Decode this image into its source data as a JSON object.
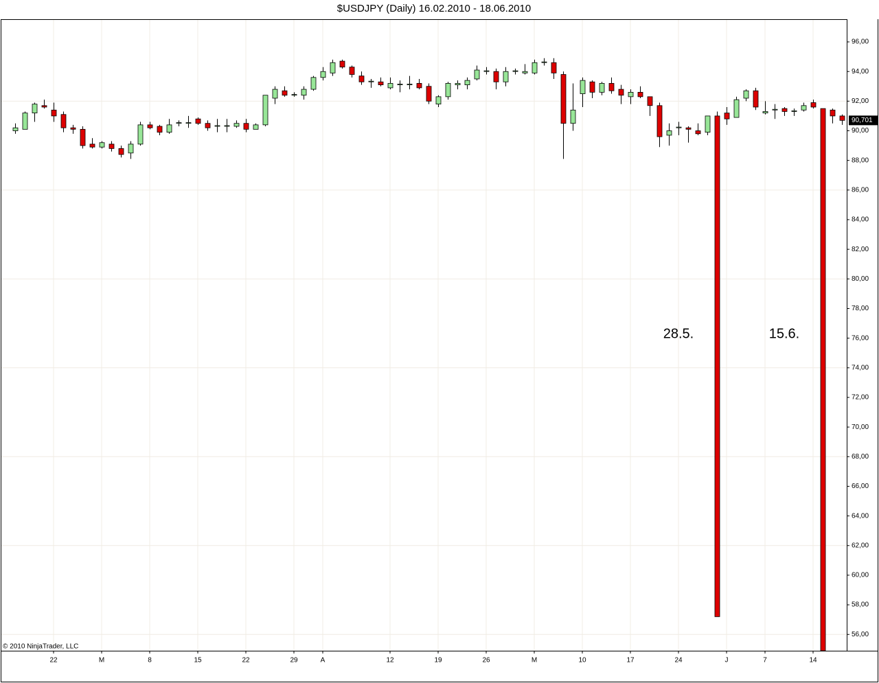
{
  "chart_data": {
    "type": "candlestick",
    "title": "$USDJPY (Daily)  16.02.2010 - 18.06.2010",
    "copyright": "© 2010 NinjaTrader, LLC",
    "annotations": [
      "28.5.",
      "15.6."
    ],
    "last_price": {
      "value": 90.701,
      "label": "90,701"
    },
    "up_color": "#98e698",
    "down_color": "#dd0000",
    "categories": [
      null,
      null,
      null,
      null,
      "22",
      null,
      null,
      null,
      null,
      "M",
      null,
      null,
      null,
      null,
      "8",
      null,
      null,
      null,
      null,
      "15",
      null,
      null,
      null,
      null,
      "22",
      null,
      null,
      null,
      null,
      "29",
      null,
      null,
      "A",
      null,
      null,
      null,
      null,
      null,
      null,
      "12",
      null,
      null,
      null,
      null,
      "19",
      null,
      null,
      null,
      null,
      "26",
      null,
      null,
      null,
      null,
      "M",
      null,
      null,
      null,
      null,
      "10",
      null,
      null,
      null,
      null,
      "17",
      null,
      null,
      null,
      null,
      "24",
      null,
      null,
      null,
      null,
      "J",
      null,
      null,
      null,
      "7",
      null,
      null,
      null,
      null,
      "14",
      null,
      null,
      null
    ],
    "open": [
      90.0,
      90.1,
      91.2,
      91.7,
      91.4,
      91.1,
      90.2,
      90.1,
      89.1,
      88.9,
      89.1,
      88.8,
      88.5,
      89.1,
      90.4,
      90.3,
      89.9,
      90.5,
      90.5,
      90.8,
      90.5,
      90.3,
      90.3,
      90.3,
      90.5,
      90.1,
      90.4,
      92.2,
      92.7,
      92.4,
      92.4,
      92.8,
      93.6,
      93.9,
      94.7,
      94.3,
      93.7,
      93.3,
      93.3,
      92.9,
      93.1,
      93.1,
      93.2,
      93.0,
      91.8,
      92.3,
      93.1,
      93.1,
      93.5,
      94.0,
      94.0,
      93.3,
      94.0,
      93.9,
      93.9,
      94.6,
      94.6,
      93.8,
      90.5,
      92.5,
      93.3,
      92.6,
      93.2,
      92.8,
      92.3,
      92.6,
      92.3,
      91.7,
      89.7,
      90.2,
      90.2,
      90.0,
      89.9,
      91.0,
      91.2,
      90.9,
      92.2,
      92.7,
      91.2,
      91.4,
      91.5,
      91.3,
      91.4,
      91.9,
      91.5,
      91.4,
      91.0
    ],
    "high": [
      90.5,
      91.3,
      91.9,
      92.1,
      91.9,
      91.3,
      90.4,
      90.3,
      89.5,
      89.3,
      89.3,
      89.0,
      89.3,
      90.6,
      90.6,
      90.4,
      90.8,
      90.7,
      91.0,
      90.9,
      90.7,
      90.8,
      90.8,
      90.7,
      90.8,
      90.5,
      92.4,
      93.0,
      93.0,
      92.6,
      93.0,
      93.7,
      94.3,
      94.8,
      94.8,
      94.4,
      94.0,
      93.5,
      93.6,
      93.6,
      93.4,
      93.7,
      93.5,
      93.2,
      92.4,
      93.3,
      93.4,
      93.6,
      94.4,
      94.3,
      94.2,
      94.3,
      94.2,
      94.5,
      94.8,
      94.9,
      94.9,
      94.0,
      93.2,
      93.6,
      93.4,
      93.3,
      93.6,
      93.1,
      92.8,
      93.0,
      92.3,
      91.9,
      90.5,
      90.6,
      90.3,
      90.5,
      91.0,
      91.3,
      91.6,
      92.3,
      92.8,
      92.9,
      92.0,
      91.8,
      91.6,
      91.5,
      91.9,
      92.1,
      91.5,
      91.5,
      91.1
    ],
    "low": [
      89.8,
      90.1,
      90.6,
      91.5,
      90.6,
      89.9,
      89.8,
      88.8,
      88.8,
      88.8,
      88.6,
      88.2,
      88.1,
      89.0,
      90.1,
      89.7,
      89.8,
      90.3,
      90.2,
      90.4,
      90.0,
      89.9,
      89.9,
      90.2,
      89.9,
      90.1,
      90.3,
      91.8,
      92.3,
      92.3,
      92.1,
      92.7,
      93.4,
      93.7,
      94.2,
      93.6,
      93.1,
      92.9,
      93.0,
      92.8,
      92.6,
      92.8,
      92.8,
      91.8,
      91.6,
      92.1,
      92.8,
      92.8,
      93.4,
      93.8,
      92.8,
      93.0,
      93.8,
      93.8,
      93.8,
      94.4,
      93.5,
      88.1,
      90.0,
      91.6,
      92.2,
      92.4,
      92.5,
      91.8,
      91.8,
      92.2,
      91.0,
      88.9,
      89.0,
      89.7,
      89.2,
      89.7,
      89.7,
      57.2,
      90.4,
      90.9,
      92.0,
      91.4,
      91.1,
      90.8,
      91.0,
      91.0,
      91.3,
      91.5,
      54.9,
      90.5,
      90.4
    ],
    "close": [
      90.2,
      91.2,
      91.8,
      91.6,
      91.0,
      90.2,
      90.1,
      89.0,
      88.9,
      89.2,
      88.8,
      88.4,
      89.1,
      90.4,
      90.2,
      89.9,
      90.4,
      90.55,
      90.55,
      90.5,
      90.2,
      90.35,
      90.35,
      90.5,
      90.1,
      90.4,
      92.4,
      92.8,
      92.4,
      92.45,
      92.8,
      93.6,
      94.0,
      94.6,
      94.3,
      93.8,
      93.3,
      93.35,
      93.1,
      93.2,
      93.15,
      93.15,
      92.9,
      92.0,
      92.3,
      93.2,
      93.2,
      93.4,
      94.1,
      94.05,
      93.3,
      94.0,
      94.05,
      94.0,
      94.6,
      94.65,
      93.9,
      90.5,
      91.4,
      93.4,
      92.6,
      93.2,
      92.7,
      92.4,
      92.6,
      92.3,
      91.7,
      89.6,
      90.0,
      90.25,
      90.1,
      89.8,
      91.0,
      57.2,
      90.8,
      92.1,
      92.7,
      91.6,
      91.3,
      91.45,
      91.3,
      91.35,
      91.7,
      91.6,
      54.9,
      91.0,
      90.7
    ],
    "ylim": [
      54.9,
      97.53
    ],
    "yticks": [
      {
        "value": 56,
        "label": "56,00"
      },
      {
        "value": 58,
        "label": "58,00"
      },
      {
        "value": 60,
        "label": "60,00"
      },
      {
        "value": 62,
        "label": "62,00"
      },
      {
        "value": 64,
        "label": "64,00"
      },
      {
        "value": 66,
        "label": "66,00"
      },
      {
        "value": 68,
        "label": "68,00"
      },
      {
        "value": 70,
        "label": "70,00"
      },
      {
        "value": 72,
        "label": "72,00"
      },
      {
        "value": 74,
        "label": "74,00"
      },
      {
        "value": 76,
        "label": "76,00"
      },
      {
        "value": 78,
        "label": "78,00"
      },
      {
        "value": 80,
        "label": "80,00"
      },
      {
        "value": 82,
        "label": "82,00"
      },
      {
        "value": 84,
        "label": "84,00"
      },
      {
        "value": 86,
        "label": "86,00"
      },
      {
        "value": 88,
        "label": "88,00"
      },
      {
        "value": 90,
        "label": "90,00"
      },
      {
        "value": 92,
        "label": "92,00"
      },
      {
        "value": 94,
        "label": "94,00"
      },
      {
        "value": 96,
        "label": "96,00"
      }
    ],
    "grid": true
  }
}
